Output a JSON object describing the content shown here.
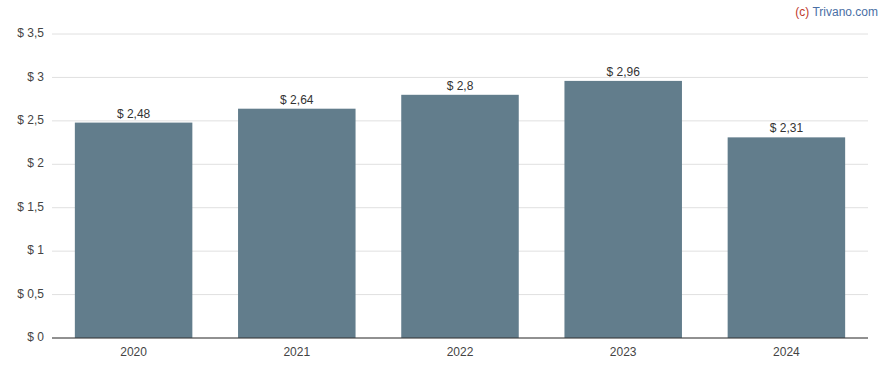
{
  "chart_data": {
    "type": "bar",
    "categories": [
      "2020",
      "2021",
      "2022",
      "2023",
      "2024"
    ],
    "values": [
      2.48,
      2.64,
      2.8,
      2.96,
      2.31
    ],
    "value_labels": [
      "$ 2,48",
      "$ 2,64",
      "$ 2,8",
      "$ 2,96",
      "$ 2,31"
    ],
    "data_labels": true,
    "color": "#627d8c",
    "ylim": [
      0,
      3.5
    ],
    "yticks": [
      {
        "value": 0,
        "label": "$ 0"
      },
      {
        "value": 0.5,
        "label": "$ 0,5"
      },
      {
        "value": 1.0,
        "label": "$ 1"
      },
      {
        "value": 1.5,
        "label": "$ 1,5"
      },
      {
        "value": 2.0,
        "label": "$ 2"
      },
      {
        "value": 2.5,
        "label": "$ 2,5"
      },
      {
        "value": 3.0,
        "label": "$ 3"
      },
      {
        "value": 3.5,
        "label": "$ 3,5"
      }
    ],
    "grid": true,
    "annotations": [
      {
        "text": "(c)",
        "color": "#c0392b"
      },
      {
        "text": " Trivano.com",
        "color": "#4a6fa5"
      }
    ]
  }
}
